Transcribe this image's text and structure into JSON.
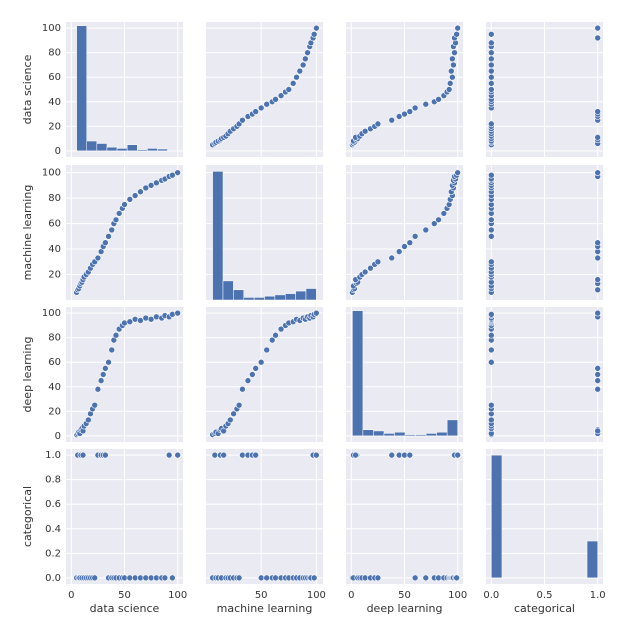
{
  "chart_data": [
    {
      "type": "histogram",
      "bins": [
        5,
        14.5,
        24,
        33.5,
        43,
        52.5,
        62,
        71.5,
        81,
        90.5,
        100
      ],
      "values": [
        102,
        8,
        6,
        3,
        2,
        5,
        1,
        2,
        1.5,
        0.5
      ],
      "color": "#4c72b0",
      "xlim": [
        -5,
        105
      ],
      "ylim": [
        -5,
        105
      ],
      "xticks": [
        0,
        50,
        100
      ],
      "yticks": [
        0,
        20,
        40,
        60,
        80,
        100
      ],
      "ylabel": "data science"
    },
    {
      "type": "scatter",
      "x": [
        6,
        8,
        9,
        11,
        13,
        14,
        16,
        18,
        20,
        22,
        25,
        28,
        30,
        33,
        38,
        42,
        45,
        50,
        55,
        60,
        63,
        68,
        72,
        75,
        79,
        82,
        85,
        88,
        90,
        92,
        94,
        95,
        97,
        98,
        100
      ],
      "y": [
        5,
        6,
        7,
        8,
        9,
        10,
        11,
        12,
        14,
        16,
        18,
        20,
        22,
        25,
        28,
        30,
        32,
        35,
        38,
        40,
        42,
        45,
        48,
        50,
        55,
        60,
        65,
        70,
        75,
        80,
        85,
        88,
        92,
        95,
        100
      ],
      "color": "#4c72b0",
      "xlim": [
        0,
        106
      ],
      "ylim": [
        -5,
        105
      ],
      "xticks": [
        50,
        100
      ],
      "yticks": [
        0,
        20,
        40,
        60,
        80,
        100
      ]
    },
    {
      "type": "scatter",
      "x": [
        1,
        2,
        3,
        2,
        5,
        6,
        4,
        8,
        10,
        13,
        18,
        22,
        25,
        38,
        45,
        50,
        55,
        60,
        70,
        78,
        82,
        87,
        90,
        92,
        93,
        95,
        94,
        96,
        95,
        97,
        96,
        98,
        97,
        99,
        100
      ],
      "y": [
        5,
        6,
        7,
        8,
        9,
        10,
        11,
        12,
        14,
        16,
        18,
        20,
        22,
        25,
        28,
        30,
        32,
        35,
        38,
        40,
        42,
        45,
        48,
        50,
        55,
        60,
        65,
        70,
        75,
        80,
        85,
        88,
        92,
        95,
        100
      ],
      "color": "#4c72b0",
      "xlim": [
        -5,
        105
      ],
      "ylim": [
        -5,
        105
      ],
      "xticks": [
        0,
        50,
        100
      ],
      "yticks": [
        0,
        20,
        40,
        60,
        80,
        100
      ]
    },
    {
      "type": "scatter",
      "x": [
        0,
        1,
        0,
        0,
        1,
        0,
        1,
        0,
        0,
        0,
        0,
        0,
        0,
        1,
        1,
        1,
        1,
        0,
        0,
        0,
        0,
        0,
        0,
        0,
        0,
        0,
        0,
        0,
        0,
        0,
        0,
        0,
        1,
        0,
        1
      ],
      "y": [
        5,
        6,
        7,
        8,
        9,
        10,
        11,
        12,
        14,
        16,
        18,
        20,
        22,
        25,
        28,
        30,
        32,
        35,
        38,
        40,
        42,
        45,
        48,
        50,
        55,
        60,
        65,
        70,
        75,
        80,
        85,
        88,
        92,
        95,
        100
      ],
      "color": "#4c72b0",
      "xlim": [
        -0.05,
        1.05
      ],
      "ylim": [
        -5,
        105
      ],
      "xticks": [
        {
          "value": 0,
          "label": "0.0"
        },
        {
          "value": 0.5,
          "label": "0.5"
        },
        {
          "value": 1,
          "label": "1.0"
        }
      ],
      "yticks": [
        0,
        20,
        40,
        60,
        80,
        100
      ]
    },
    {
      "type": "scatter",
      "x": [
        5,
        6,
        7,
        8,
        9,
        10,
        11,
        12,
        14,
        16,
        18,
        20,
        22,
        25,
        28,
        30,
        32,
        35,
        38,
        40,
        42,
        45,
        48,
        50,
        55,
        60,
        65,
        70,
        75,
        80,
        85,
        88,
        92,
        95,
        100
      ],
      "y": [
        6,
        8,
        9,
        11,
        13,
        14,
        16,
        18,
        20,
        22,
        25,
        28,
        30,
        33,
        38,
        42,
        45,
        50,
        55,
        60,
        63,
        68,
        72,
        75,
        79,
        82,
        85,
        88,
        90,
        92,
        94,
        95,
        97,
        98,
        100
      ],
      "color": "#4c72b0",
      "xlim": [
        -5,
        105
      ],
      "ylim": [
        0,
        106
      ],
      "xticks": [
        0,
        50,
        100
      ],
      "yticks": [
        20,
        40,
        60,
        80,
        100
      ],
      "ylabel": "machine learning"
    },
    {
      "type": "histogram",
      "bins": [
        6,
        15.4,
        24.8,
        34.2,
        43.6,
        53,
        62.4,
        71.8,
        81.2,
        90.6,
        100
      ],
      "values": [
        101,
        15,
        8,
        2,
        2,
        3,
        4,
        5,
        7,
        9
      ],
      "color": "#4c72b0",
      "xlim": [
        0,
        106
      ],
      "ylim": [
        0,
        106
      ],
      "xticks": [
        50,
        100
      ],
      "yticks": [
        20,
        40,
        60,
        80,
        100
      ]
    },
    {
      "type": "scatter",
      "x": [
        1,
        2,
        3,
        2,
        5,
        6,
        4,
        8,
        10,
        13,
        18,
        22,
        25,
        38,
        45,
        50,
        55,
        60,
        70,
        78,
        82,
        87,
        90,
        92,
        93,
        95,
        94,
        96,
        95,
        97,
        96,
        98,
        97,
        99,
        100
      ],
      "y": [
        6,
        8,
        9,
        11,
        13,
        14,
        16,
        18,
        20,
        22,
        25,
        28,
        30,
        33,
        38,
        42,
        45,
        50,
        55,
        60,
        63,
        68,
        72,
        75,
        79,
        82,
        85,
        88,
        90,
        92,
        94,
        95,
        97,
        98,
        100
      ],
      "color": "#4c72b0",
      "xlim": [
        -5,
        105
      ],
      "ylim": [
        0,
        106
      ],
      "xticks": [
        0,
        50,
        100
      ],
      "yticks": [
        20,
        40,
        60,
        80,
        100
      ]
    },
    {
      "type": "scatter",
      "x": [
        0,
        1,
        0,
        0,
        1,
        0,
        1,
        0,
        0,
        0,
        0,
        0,
        0,
        1,
        1,
        1,
        1,
        0,
        0,
        0,
        0,
        0,
        0,
        0,
        0,
        0,
        0,
        0,
        0,
        0,
        0,
        0,
        1,
        0,
        1
      ],
      "y": [
        6,
        8,
        9,
        11,
        13,
        14,
        16,
        18,
        20,
        22,
        25,
        28,
        30,
        33,
        38,
        42,
        45,
        50,
        55,
        60,
        63,
        68,
        72,
        75,
        79,
        82,
        85,
        88,
        90,
        92,
        94,
        95,
        97,
        98,
        100
      ],
      "color": "#4c72b0",
      "xlim": [
        -0.05,
        1.05
      ],
      "ylim": [
        0,
        106
      ],
      "xticks": [
        {
          "value": 0,
          "label": "0.0"
        },
        {
          "value": 0.5,
          "label": "0.5"
        },
        {
          "value": 1,
          "label": "1.0"
        }
      ],
      "yticks": [
        20,
        40,
        60,
        80,
        100
      ]
    },
    {
      "type": "scatter",
      "x": [
        5,
        6,
        7,
        8,
        9,
        10,
        11,
        12,
        14,
        16,
        18,
        20,
        22,
        25,
        28,
        30,
        32,
        35,
        38,
        40,
        42,
        45,
        48,
        50,
        55,
        60,
        65,
        70,
        75,
        80,
        85,
        88,
        92,
        95,
        100
      ],
      "y": [
        1,
        2,
        3,
        2,
        5,
        6,
        4,
        8,
        10,
        13,
        18,
        22,
        25,
        38,
        45,
        50,
        55,
        60,
        70,
        78,
        82,
        87,
        90,
        92,
        93,
        95,
        94,
        96,
        95,
        97,
        96,
        98,
        97,
        99,
        100
      ],
      "color": "#4c72b0",
      "xlim": [
        -5,
        105
      ],
      "ylim": [
        -5,
        105
      ],
      "xticks": [
        0,
        50,
        100
      ],
      "yticks": [
        0,
        20,
        40,
        60,
        80,
        100
      ],
      "ylabel": "deep learning"
    },
    {
      "type": "scatter",
      "x": [
        6,
        8,
        9,
        11,
        13,
        14,
        16,
        18,
        20,
        22,
        25,
        28,
        30,
        33,
        38,
        42,
        45,
        50,
        55,
        60,
        63,
        68,
        72,
        75,
        79,
        82,
        85,
        88,
        90,
        92,
        94,
        95,
        97,
        98,
        100
      ],
      "y": [
        1,
        2,
        3,
        2,
        5,
        6,
        4,
        8,
        10,
        13,
        18,
        22,
        25,
        38,
        45,
        50,
        55,
        60,
        70,
        78,
        82,
        87,
        90,
        92,
        93,
        95,
        94,
        96,
        95,
        97,
        96,
        98,
        97,
        99,
        100
      ],
      "color": "#4c72b0",
      "xlim": [
        0,
        106
      ],
      "ylim": [
        -5,
        105
      ],
      "xticks": [
        50,
        100
      ],
      "yticks": [
        0,
        20,
        40,
        60,
        80,
        100
      ]
    },
    {
      "type": "histogram",
      "bins": [
        1,
        10.9,
        20.8,
        30.7,
        40.6,
        50.5,
        60.4,
        70.3,
        80.2,
        90.1,
        100
      ],
      "values": [
        102,
        5,
        4,
        2,
        3,
        1,
        1,
        2,
        3,
        13
      ],
      "color": "#4c72b0",
      "xlim": [
        -5,
        105
      ],
      "ylim": [
        -5,
        105
      ],
      "xticks": [
        0,
        50,
        100
      ],
      "yticks": [
        0,
        20,
        40,
        60,
        80,
        100
      ]
    },
    {
      "type": "scatter",
      "x": [
        0,
        1,
        0,
        0,
        1,
        0,
        1,
        0,
        0,
        0,
        0,
        0,
        0,
        1,
        1,
        1,
        1,
        0,
        0,
        0,
        0,
        0,
        0,
        0,
        0,
        0,
        0,
        0,
        0,
        0,
        0,
        0,
        1,
        0,
        1
      ],
      "y": [
        1,
        2,
        3,
        2,
        5,
        6,
        4,
        8,
        10,
        13,
        18,
        22,
        25,
        38,
        45,
        50,
        55,
        60,
        70,
        78,
        82,
        87,
        90,
        92,
        93,
        95,
        94,
        96,
        95,
        97,
        96,
        98,
        97,
        99,
        100
      ],
      "color": "#4c72b0",
      "xlim": [
        -0.05,
        1.05
      ],
      "ylim": [
        -5,
        105
      ],
      "xticks": [
        {
          "value": 0,
          "label": "0.0"
        },
        {
          "value": 0.5,
          "label": "0.5"
        },
        {
          "value": 1,
          "label": "1.0"
        }
      ],
      "yticks": [
        0,
        20,
        40,
        60,
        80,
        100
      ]
    },
    {
      "type": "scatter",
      "x": [
        5,
        6,
        7,
        8,
        9,
        10,
        11,
        12,
        14,
        16,
        18,
        20,
        22,
        25,
        28,
        30,
        32,
        35,
        38,
        40,
        42,
        45,
        48,
        50,
        55,
        60,
        65,
        70,
        75,
        80,
        85,
        88,
        92,
        95,
        100
      ],
      "y": [
        0,
        1,
        0,
        0,
        1,
        0,
        1,
        0,
        0,
        0,
        0,
        0,
        0,
        1,
        1,
        1,
        1,
        0,
        0,
        0,
        0,
        0,
        0,
        0,
        0,
        0,
        0,
        0,
        0,
        0,
        0,
        0,
        1,
        0,
        1
      ],
      "color": "#4c72b0",
      "xlim": [
        -5,
        105
      ],
      "ylim": [
        -0.05,
        1.05
      ],
      "xticks": [
        0,
        50,
        100
      ],
      "yticks": [
        {
          "value": 0,
          "label": "0.0"
        },
        {
          "value": 0.2,
          "label": "0.2"
        },
        {
          "value": 0.4,
          "label": "0.4"
        },
        {
          "value": 0.6,
          "label": "0.6"
        },
        {
          "value": 0.8,
          "label": "0.8"
        },
        {
          "value": 1,
          "label": "1.0"
        }
      ],
      "ylabel": "categorical",
      "xlabel": "data science"
    },
    {
      "type": "scatter",
      "x": [
        6,
        8,
        9,
        11,
        13,
        14,
        16,
        18,
        20,
        22,
        25,
        28,
        30,
        33,
        38,
        42,
        45,
        50,
        55,
        60,
        63,
        68,
        72,
        75,
        79,
        82,
        85,
        88,
        90,
        92,
        94,
        95,
        97,
        98,
        100
      ],
      "y": [
        0,
        1,
        0,
        0,
        1,
        0,
        1,
        0,
        0,
        0,
        0,
        0,
        0,
        1,
        1,
        1,
        1,
        0,
        0,
        0,
        0,
        0,
        0,
        0,
        0,
        0,
        0,
        0,
        0,
        0,
        0,
        0,
        1,
        0,
        1
      ],
      "color": "#4c72b0",
      "xlim": [
        0,
        106
      ],
      "ylim": [
        -0.05,
        1.05
      ],
      "xticks": [
        50,
        100
      ],
      "yticks": [
        {
          "value": 0,
          "label": "0.0"
        },
        {
          "value": 0.2,
          "label": "0.2"
        },
        {
          "value": 0.4,
          "label": "0.4"
        },
        {
          "value": 0.6,
          "label": "0.6"
        },
        {
          "value": 0.8,
          "label": "0.8"
        },
        {
          "value": 1,
          "label": "1.0"
        }
      ],
      "xlabel": "machine learning"
    },
    {
      "type": "scatter",
      "x": [
        1,
        2,
        3,
        2,
        5,
        6,
        4,
        8,
        10,
        13,
        18,
        22,
        25,
        38,
        45,
        50,
        55,
        60,
        70,
        78,
        82,
        87,
        90,
        92,
        93,
        95,
        94,
        96,
        95,
        97,
        96,
        98,
        97,
        99,
        100
      ],
      "y": [
        0,
        1,
        0,
        0,
        1,
        0,
        1,
        0,
        0,
        0,
        0,
        0,
        0,
        1,
        1,
        1,
        1,
        0,
        0,
        0,
        0,
        0,
        0,
        0,
        0,
        0,
        0,
        0,
        0,
        0,
        0,
        0,
        1,
        0,
        1
      ],
      "color": "#4c72b0",
      "xlim": [
        -5,
        105
      ],
      "ylim": [
        -0.05,
        1.05
      ],
      "xticks": [
        0,
        50,
        100
      ],
      "yticks": [
        {
          "value": 0,
          "label": "0.0"
        },
        {
          "value": 0.2,
          "label": "0.2"
        },
        {
          "value": 0.4,
          "label": "0.4"
        },
        {
          "value": 0.6,
          "label": "0.6"
        },
        {
          "value": 0.8,
          "label": "0.8"
        },
        {
          "value": 1,
          "label": "1.0"
        }
      ],
      "xlabel": "deep learning"
    },
    {
      "type": "histogram",
      "bins": [
        0,
        0.1,
        0.2,
        0.3,
        0.4,
        0.5,
        0.6,
        0.7,
        0.8,
        0.9,
        1.0
      ],
      "values": [
        1.0,
        0,
        0,
        0,
        0,
        0,
        0,
        0,
        0,
        0.3
      ],
      "color": "#4c72b0",
      "xlim": [
        -0.05,
        1.05
      ],
      "ylim": [
        -0.05,
        1.05
      ],
      "xticks": [
        {
          "value": 0,
          "label": "0.0"
        },
        {
          "value": 0.5,
          "label": "0.5"
        },
        {
          "value": 1,
          "label": "1.0"
        }
      ],
      "yticks": [
        {
          "value": 0,
          "label": "0.0"
        },
        {
          "value": 0.2,
          "label": "0.2"
        },
        {
          "value": 0.4,
          "label": "0.4"
        },
        {
          "value": 0.6,
          "label": "0.6"
        },
        {
          "value": 0.8,
          "label": "0.8"
        },
        {
          "value": 1,
          "label": "1.0"
        }
      ],
      "xlabel": "categorical"
    }
  ]
}
